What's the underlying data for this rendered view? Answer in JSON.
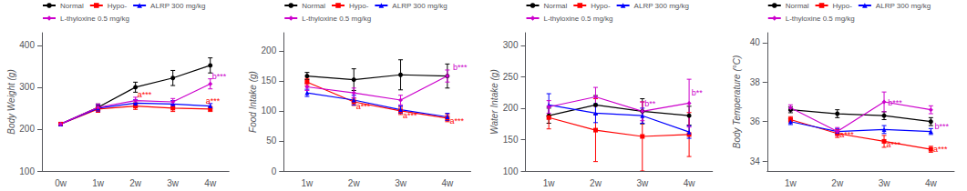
{
  "chart_data": [
    {
      "type": "line",
      "ylabel": "Body Weight (g)",
      "categories": [
        "0w",
        "1w",
        "2w",
        "3w",
        "4w"
      ],
      "ylim": [
        100,
        430
      ],
      "yticks": [
        100,
        200,
        300,
        400
      ],
      "grid": false,
      "legend": "upper left",
      "series": [
        {
          "name": "Normal",
          "color": "#000000",
          "marker": "circle",
          "values": [
            212,
            252,
            300,
            322,
            352
          ],
          "errors": [
            3,
            8,
            12,
            18,
            18
          ]
        },
        {
          "name": "Hypo-",
          "color": "#ff0000",
          "marker": "square",
          "values": [
            212,
            248,
            255,
            250,
            248
          ],
          "errors": [
            3,
            8,
            8,
            8,
            6
          ]
        },
        {
          "name": "ALRP 300 mg/kg",
          "color": "#0000ff",
          "marker": "triangle",
          "values": [
            212,
            250,
            262,
            260,
            255
          ],
          "errors": [
            3,
            8,
            8,
            8,
            6
          ]
        },
        {
          "name": "L-thyloxine 0.5 mg/kg",
          "color": "#cc00cc",
          "marker": "diamond",
          "values": [
            212,
            252,
            268,
            265,
            308
          ],
          "errors": [
            3,
            8,
            8,
            8,
            12
          ]
        }
      ],
      "annotations": [
        {
          "x": 2.05,
          "y": 272,
          "text": "a***",
          "color": "#ff0000"
        },
        {
          "x": 3.88,
          "y": 258,
          "text": "a***",
          "color": "#ff0000"
        },
        {
          "x": 4.05,
          "y": 315,
          "text": "b***",
          "color": "#cc00cc"
        }
      ]
    },
    {
      "type": "line",
      "ylabel": "Food Intake (g)",
      "categories": [
        "1w",
        "2w",
        "3w",
        "4w"
      ],
      "ylim": [
        0,
        230
      ],
      "yticks": [
        0,
        50,
        100,
        150,
        200
      ],
      "grid": false,
      "legend": "upper left",
      "series": [
        {
          "name": "Normal",
          "color": "#000000",
          "marker": "circle",
          "values": [
            158,
            152,
            160,
            158
          ],
          "errors": [
            6,
            18,
            25,
            20
          ]
        },
        {
          "name": "Hypo-",
          "color": "#ff0000",
          "marker": "square",
          "values": [
            148,
            115,
            100,
            88
          ],
          "errors": [
            6,
            6,
            6,
            6
          ]
        },
        {
          "name": "ALRP 300 mg/kg",
          "color": "#0000ff",
          "marker": "triangle",
          "values": [
            130,
            118,
            102,
            90
          ],
          "errors": [
            6,
            8,
            6,
            6
          ]
        },
        {
          "name": "L-thyloxine 0.5 mg/kg",
          "color": "#cc00cc",
          "marker": "diamond",
          "values": [
            140,
            130,
            118,
            158
          ],
          "errors": [
            6,
            8,
            8,
            10
          ]
        }
      ],
      "annotations": [
        {
          "x": 1.05,
          "y": 100,
          "text": "a***",
          "color": "#ff0000"
        },
        {
          "x": 2.05,
          "y": 86,
          "text": "a***",
          "color": "#ff0000"
        },
        {
          "x": 3.05,
          "y": 76,
          "text": "a***",
          "color": "#ff0000"
        },
        {
          "x": 3.12,
          "y": 165,
          "text": "b***",
          "color": "#cc00cc"
        }
      ]
    },
    {
      "type": "line",
      "ylabel": "Water Intake (g)",
      "categories": [
        "1w",
        "2w",
        "3w",
        "4w"
      ],
      "ylim": [
        100,
        320
      ],
      "yticks": [
        100,
        150,
        200,
        250,
        300
      ],
      "grid": false,
      "legend": "upper left",
      "series": [
        {
          "name": "Normal",
          "color": "#000000",
          "marker": "circle",
          "values": [
            188,
            205,
            195,
            188
          ],
          "errors": [
            12,
            15,
            20,
            15
          ]
        },
        {
          "name": "Hypo-",
          "color": "#ff0000",
          "marker": "square",
          "values": [
            185,
            165,
            155,
            158
          ],
          "errors": [
            18,
            50,
            55,
            35
          ]
        },
        {
          "name": "ALRP 300 mg/kg",
          "color": "#0000ff",
          "marker": "triangle",
          "values": [
            205,
            192,
            188,
            162
          ],
          "errors": [
            18,
            15,
            12,
            10
          ]
        },
        {
          "name": "L-thyloxine 0.5 mg/kg",
          "color": "#cc00cc",
          "marker": "diamond",
          "values": [
            202,
            218,
            195,
            208
          ],
          "errors": [
            10,
            15,
            15,
            38
          ]
        }
      ],
      "annotations": [
        {
          "x": 2.05,
          "y": 200,
          "text": "b**",
          "color": "#cc00cc"
        },
        {
          "x": 3.05,
          "y": 218,
          "text": "b**",
          "color": "#cc00cc"
        }
      ]
    },
    {
      "type": "line",
      "ylabel": "Body Temperature (°C)",
      "categories": [
        "1w",
        "2w",
        "3w",
        "4w"
      ],
      "ylim": [
        33.5,
        40.5
      ],
      "yticks": [
        34,
        36,
        38,
        40
      ],
      "grid": false,
      "legend": "upper left",
      "series": [
        {
          "name": "Normal",
          "color": "#000000",
          "marker": "circle",
          "values": [
            36.6,
            36.4,
            36.3,
            36.0
          ],
          "errors": [
            0.15,
            0.2,
            0.2,
            0.2
          ]
        },
        {
          "name": "Hypo-",
          "color": "#ff0000",
          "marker": "square",
          "values": [
            36.1,
            35.4,
            35.0,
            34.6
          ],
          "errors": [
            0.15,
            0.2,
            0.3,
            0.15
          ]
        },
        {
          "name": "ALRP 300 mg/kg",
          "color": "#0000ff",
          "marker": "triangle",
          "values": [
            36.0,
            35.5,
            35.6,
            35.5
          ],
          "errors": [
            0.15,
            0.15,
            0.2,
            0.15
          ]
        },
        {
          "name": "L-thyloxine 0.5 mg/kg",
          "color": "#cc00cc",
          "marker": "diamond",
          "values": [
            36.7,
            35.5,
            37.0,
            36.6
          ],
          "errors": [
            0.15,
            0.2,
            0.5,
            0.2
          ]
        }
      ],
      "annotations": [
        {
          "x": 1.05,
          "y": 35.15,
          "text": "a***",
          "color": "#ff0000"
        },
        {
          "x": 2.05,
          "y": 34.65,
          "text": "a***",
          "color": "#ff0000"
        },
        {
          "x": 2.08,
          "y": 36.75,
          "text": "b***",
          "color": "#cc00cc"
        },
        {
          "x": 3.05,
          "y": 34.42,
          "text": "a***",
          "color": "#ff0000"
        },
        {
          "x": 3.08,
          "y": 35.55,
          "text": "b***",
          "color": "#cc00cc"
        }
      ]
    }
  ]
}
